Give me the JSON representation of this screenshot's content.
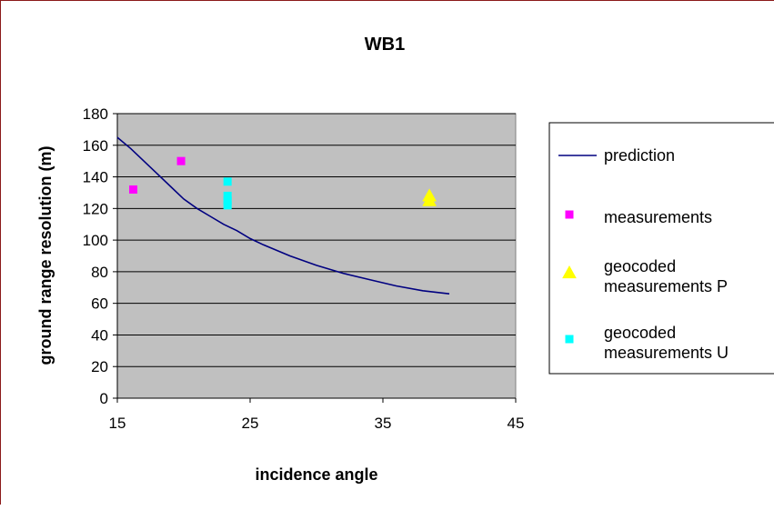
{
  "chart_data": {
    "type": "scatter",
    "title": "WB1",
    "xlabel": "incidence angle",
    "ylabel": "ground range resolution (m)",
    "xlim": [
      15,
      45
    ],
    "ylim": [
      0,
      180
    ],
    "x_ticks": [
      "15",
      "25",
      "35",
      "45"
    ],
    "y_ticks": [
      "0",
      "20",
      "40",
      "60",
      "80",
      "100",
      "120",
      "140",
      "160",
      "180"
    ],
    "grid": "horizontal",
    "legend_position": "right",
    "plot_background": "#c0c0c0",
    "series": [
      {
        "name": "prediction",
        "kind": "line",
        "color": "#000080",
        "x": [
          15,
          16,
          17,
          18,
          19,
          20,
          21,
          22,
          23,
          24,
          25,
          26,
          28,
          30,
          32,
          34,
          36,
          38,
          40
        ],
        "y": [
          165,
          158,
          150,
          142,
          134,
          126,
          120,
          115,
          110,
          106,
          101,
          97,
          90,
          84,
          79,
          75,
          71,
          68,
          66
        ]
      },
      {
        "name": "measurements",
        "kind": "square",
        "color": "#ff00ff",
        "x": [
          16.2,
          19.8
        ],
        "y": [
          132,
          150
        ]
      },
      {
        "name": "geocoded measurements P",
        "kind": "triangle",
        "color": "#ffff00",
        "x": [
          38.5,
          38.5
        ],
        "y": [
          128,
          125
        ]
      },
      {
        "name": "geocoded measurements U",
        "kind": "square",
        "color": "#00ffff",
        "x": [
          23.3,
          23.3,
          23.3,
          23.3
        ],
        "y": [
          137,
          128,
          125,
          122
        ]
      }
    ]
  }
}
